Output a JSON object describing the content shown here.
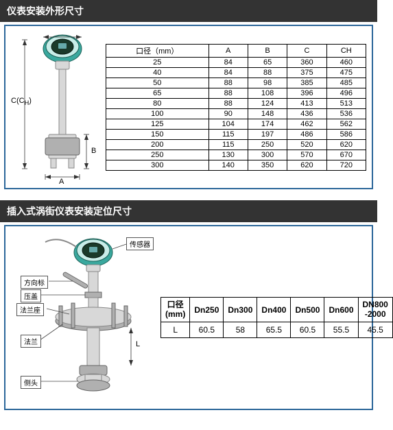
{
  "section1": {
    "title": "仪表安装外形尺寸",
    "diagram": {
      "dim_c": "C(C",
      "dim_c_sub": "H",
      "dim_c_close": ")",
      "dim_a": "A",
      "dim_b": "B"
    },
    "table": {
      "headers": [
        "口径（mm）",
        "A",
        "B",
        "C",
        "CH"
      ],
      "rows": [
        [
          "25",
          "84",
          "65",
          "360",
          "460"
        ],
        [
          "40",
          "84",
          "88",
          "375",
          "475"
        ],
        [
          "50",
          "88",
          "98",
          "385",
          "485"
        ],
        [
          "65",
          "88",
          "108",
          "396",
          "496"
        ],
        [
          "80",
          "88",
          "124",
          "413",
          "513"
        ],
        [
          "100",
          "90",
          "148",
          "436",
          "536"
        ],
        [
          "125",
          "104",
          "174",
          "462",
          "562"
        ],
        [
          "150",
          "115",
          "197",
          "486",
          "586"
        ],
        [
          "200",
          "115",
          "250",
          "520",
          "620"
        ],
        [
          "250",
          "130",
          "300",
          "570",
          "670"
        ],
        [
          "300",
          "140",
          "350",
          "620",
          "720"
        ]
      ]
    }
  },
  "section2": {
    "title": "插入式涡街仪表安装定位尺寸",
    "labels": {
      "sensor": "传感器",
      "direction": "方向标",
      "cover": "压盖",
      "flange_seat": "法兰座",
      "flange": "法兰",
      "side_head": "侧头",
      "dim_l": "L"
    },
    "table": {
      "headers": [
        "口径\n(mm)",
        "Dn250",
        "Dn300",
        "Dn400",
        "Dn500",
        "Dn600",
        "DN800\n-2000"
      ],
      "row_label": "L",
      "values": [
        "60.5",
        "58",
        "65.5",
        "60.5",
        "55.5",
        "45.5"
      ]
    }
  }
}
